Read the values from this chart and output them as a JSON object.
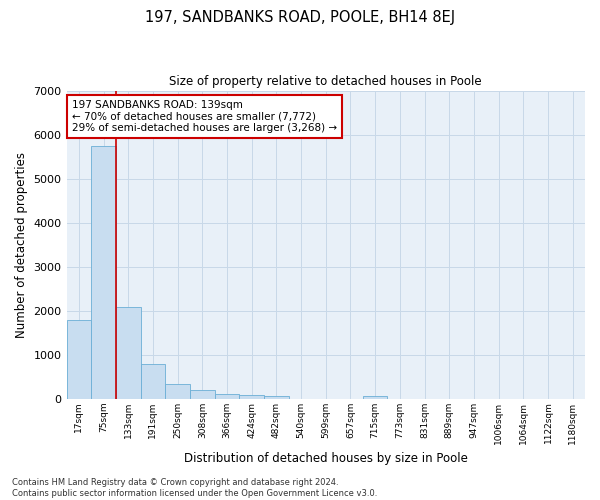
{
  "title": "197, SANDBANKS ROAD, POOLE, BH14 8EJ",
  "subtitle": "Size of property relative to detached houses in Poole",
  "xlabel": "Distribution of detached houses by size in Poole",
  "ylabel": "Number of detached properties",
  "bar_color": "#c8ddf0",
  "bar_edge_color": "#6baed6",
  "grid_color": "#c8d8e8",
  "background_color": "#e8f0f8",
  "bin_labels": [
    "17sqm",
    "75sqm",
    "133sqm",
    "191sqm",
    "250sqm",
    "308sqm",
    "366sqm",
    "424sqm",
    "482sqm",
    "540sqm",
    "599sqm",
    "657sqm",
    "715sqm",
    "773sqm",
    "831sqm",
    "889sqm",
    "947sqm",
    "1006sqm",
    "1064sqm",
    "1122sqm",
    "1180sqm"
  ],
  "bar_heights": [
    1800,
    5750,
    2075,
    800,
    340,
    210,
    110,
    95,
    60,
    0,
    0,
    0,
    70,
    0,
    0,
    0,
    0,
    0,
    0,
    0,
    0
  ],
  "vline_x": 1.5,
  "vline_color": "#cc0000",
  "annotation_text": "197 SANDBANKS ROAD: 139sqm\n← 70% of detached houses are smaller (7,772)\n29% of semi-detached houses are larger (3,268) →",
  "annotation_box_color": "white",
  "annotation_box_edge": "#cc0000",
  "ylim": [
    0,
    7000
  ],
  "footnote1": "Contains HM Land Registry data © Crown copyright and database right 2024.",
  "footnote2": "Contains public sector information licensed under the Open Government Licence v3.0."
}
